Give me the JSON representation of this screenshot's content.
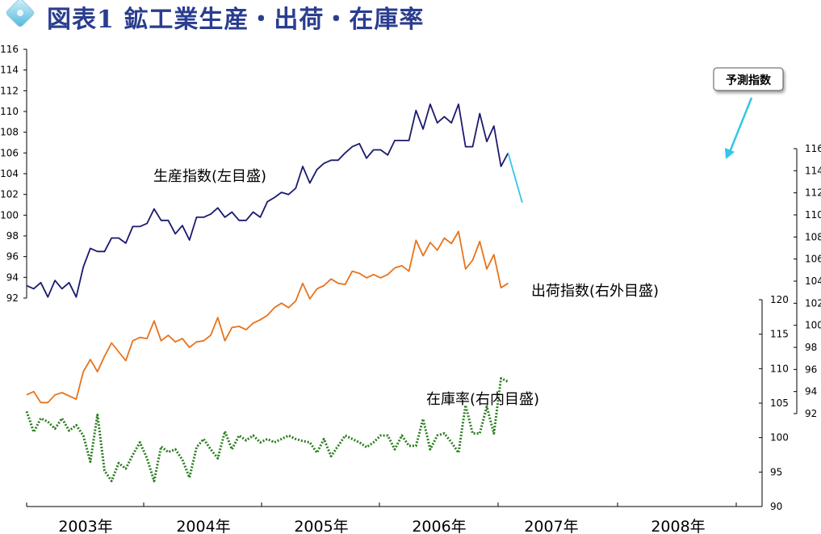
{
  "title": "図表1 鉱工業生産・出荷・在庫率",
  "chart_data": {
    "type": "line",
    "x_labels": [
      "2003年",
      "2004年",
      "2005年",
      "2006年",
      "2007年",
      "2008年"
    ],
    "axes": {
      "left": {
        "min": 92,
        "max": 116,
        "ticks": [
          92,
          94,
          96,
          98,
          100,
          102,
          104,
          106,
          108,
          110,
          112,
          114,
          116
        ]
      },
      "right_outer": {
        "min": 92,
        "max": 116,
        "ticks": [
          92,
          94,
          96,
          98,
          100,
          102,
          104,
          106,
          108,
          110,
          112,
          114,
          116
        ]
      },
      "right_inner": {
        "min": 90,
        "max": 120,
        "ticks": [
          90,
          95,
          100,
          105,
          110,
          115,
          120
        ]
      }
    },
    "series": [
      {
        "name": "生産指数(左目盛)",
        "axis": "left",
        "color": "#1a1a6e",
        "style": "solid",
        "start_month": 0,
        "values": [
          93.2,
          92.9,
          93.5,
          92.1,
          93.7,
          92.9,
          93.5,
          92.1,
          95.0,
          96.8,
          96.5,
          96.5,
          97.8,
          97.8,
          97.3,
          98.9,
          98.9,
          99.2,
          100.6,
          99.5,
          99.5,
          98.2,
          99.0,
          97.6,
          99.8,
          99.8,
          100.1,
          100.7,
          99.8,
          100.3,
          99.5,
          99.5,
          100.3,
          99.8,
          101.3,
          101.7,
          102.2,
          102.0,
          102.6,
          104.7,
          103.1,
          104.4,
          105.0,
          105.3,
          105.3,
          106.0,
          106.6,
          106.9,
          105.5,
          106.3,
          106.3,
          105.8,
          107.2,
          107.2,
          107.2,
          110.1,
          108.3,
          110.7,
          108.9,
          109.5,
          108.9,
          110.7,
          106.6,
          106.6,
          109.8,
          107.1,
          108.6,
          104.7,
          106.0
        ]
      },
      {
        "name": "予測指数",
        "axis": "left",
        "color": "#33c6e6",
        "style": "solid",
        "start_month": 68,
        "values": [
          106.0,
          103.6,
          101.2
        ]
      },
      {
        "name": "出荷指数(右外目盛)",
        "axis": "right_outer",
        "color": "#e8731a",
        "style": "solid",
        "start_month": 0,
        "values": [
          93.7,
          94.0,
          93.0,
          93.0,
          93.7,
          93.9,
          93.6,
          93.3,
          95.8,
          96.9,
          95.8,
          97.2,
          98.4,
          97.6,
          96.8,
          98.6,
          98.9,
          98.8,
          100.4,
          98.6,
          99.1,
          98.5,
          98.8,
          98.0,
          98.5,
          98.6,
          99.1,
          100.7,
          98.6,
          99.8,
          99.9,
          99.6,
          100.2,
          100.5,
          100.9,
          101.6,
          102.0,
          101.6,
          102.2,
          103.8,
          102.4,
          103.3,
          103.6,
          104.2,
          103.8,
          103.7,
          104.9,
          104.7,
          104.3,
          104.6,
          104.3,
          104.6,
          105.2,
          105.4,
          104.9,
          107.7,
          106.3,
          107.5,
          106.8,
          107.9,
          107.4,
          108.5,
          105.1,
          105.9,
          107.6,
          105.1,
          106.4,
          103.4,
          103.8
        ]
      },
      {
        "name": "在庫率(右内目盛)",
        "axis": "right_inner",
        "color": "#2a7f1e",
        "style": "dotted",
        "start_month": 0,
        "values": [
          103.8,
          100.8,
          102.8,
          102.3,
          101.3,
          102.8,
          101.0,
          101.8,
          100.3,
          96.5,
          103.3,
          95.2,
          93.7,
          96.3,
          95.5,
          97.5,
          99.3,
          97.0,
          93.7,
          98.7,
          97.9,
          98.3,
          96.8,
          94.2,
          98.6,
          99.8,
          98.3,
          97.0,
          100.9,
          98.3,
          100.3,
          99.6,
          100.3,
          99.3,
          99.8,
          99.3,
          99.8,
          100.3,
          99.8,
          99.5,
          99.3,
          97.8,
          99.8,
          97.3,
          98.8,
          100.3,
          99.8,
          99.3,
          98.6,
          99.3,
          100.3,
          100.3,
          98.3,
          100.3,
          98.8,
          98.8,
          102.7,
          98.3,
          100.3,
          100.6,
          99.3,
          97.8,
          104.7,
          100.6,
          100.6,
          104.5,
          100.6,
          108.6,
          108.1
        ]
      }
    ],
    "annotations": [
      {
        "text": "生産指数(左目盛)"
      },
      {
        "text": "出荷指数(右外目盛)"
      },
      {
        "text": "在庫率(右内目盛)"
      },
      {
        "text": "予測指数"
      }
    ]
  }
}
